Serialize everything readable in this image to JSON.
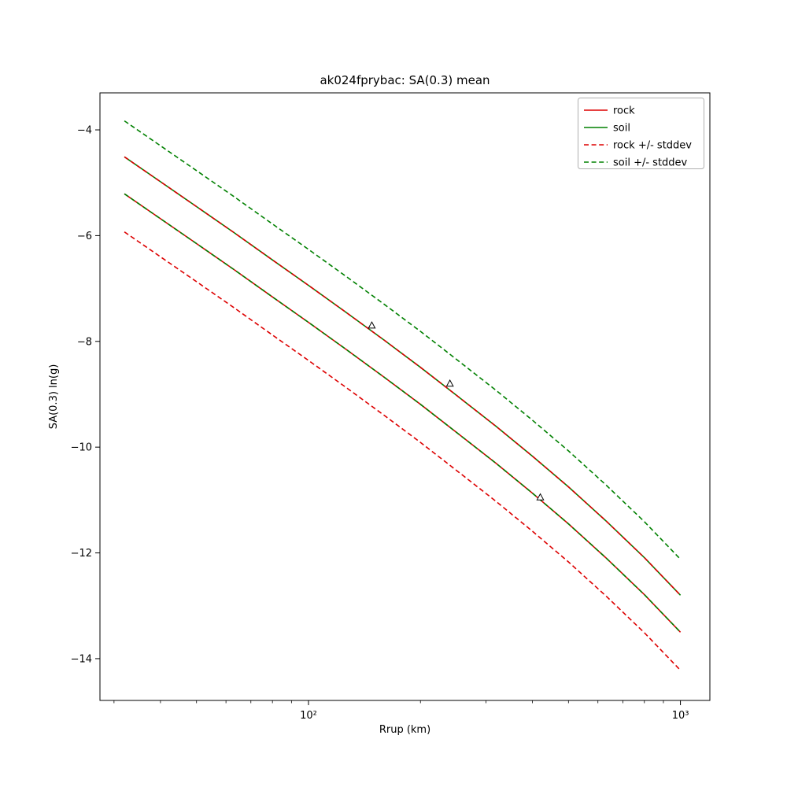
{
  "chart_data": {
    "type": "line",
    "title": "ak024fprybac: SA(0.3) mean",
    "xlabel": "Rrup (km)",
    "ylabel": "SA(0.3) ln(g)",
    "xscale": "log",
    "xlim": [
      27.5,
      1200
    ],
    "ylim": [
      -14.79,
      -3.3
    ],
    "grid": false,
    "yticks": [
      -4,
      -6,
      -8,
      -10,
      -12,
      -14
    ],
    "ytick_labels": [
      "−4",
      "−6",
      "−8",
      "−10",
      "−12",
      "−14"
    ],
    "xticks_major": [
      100,
      1000
    ],
    "xtick_labels": [
      "10²",
      "10³"
    ],
    "xticks_minor": [
      30,
      40,
      50,
      60,
      70,
      80,
      90,
      200,
      300,
      400,
      500,
      600,
      700,
      800,
      900
    ],
    "x": [
      32,
      40,
      50,
      63,
      80,
      100,
      125,
      160,
      200,
      250,
      320,
      400,
      500,
      630,
      800,
      1000
    ],
    "series": [
      {
        "name": "rock",
        "color": "#dd0000",
        "style": "solid",
        "values": [
          -5.21,
          -5.68,
          -6.15,
          -6.64,
          -7.16,
          -7.64,
          -8.13,
          -8.68,
          -9.19,
          -9.72,
          -10.31,
          -10.87,
          -11.45,
          -12.09,
          -12.79,
          -13.5
        ]
      },
      {
        "name": "soil",
        "color": "#008000",
        "style": "solid",
        "values": [
          -4.51,
          -4.98,
          -5.45,
          -5.94,
          -6.46,
          -6.94,
          -7.43,
          -7.98,
          -8.49,
          -9.02,
          -9.61,
          -10.17,
          -10.75,
          -11.39,
          -12.09,
          -12.8
        ]
      },
      {
        "name": "rock +/- stddev",
        "color": "#dd0000",
        "style": "dashed",
        "upper": [
          -4.51,
          -4.98,
          -5.45,
          -5.94,
          -6.46,
          -6.94,
          -7.43,
          -7.98,
          -8.49,
          -9.02,
          -9.61,
          -10.17,
          -10.75,
          -11.39,
          -12.09,
          -12.8
        ],
        "lower": [
          -5.93,
          -6.4,
          -6.87,
          -7.36,
          -7.88,
          -8.36,
          -8.85,
          -9.4,
          -9.91,
          -10.44,
          -11.03,
          -11.59,
          -12.17,
          -12.81,
          -13.51,
          -14.22
        ]
      },
      {
        "name": "soil +/- stddev",
        "color": "#008000",
        "style": "dashed",
        "upper": [
          -3.83,
          -4.3,
          -4.77,
          -5.26,
          -5.78,
          -6.26,
          -6.75,
          -7.3,
          -7.81,
          -8.34,
          -8.93,
          -9.49,
          -10.07,
          -10.71,
          -11.41,
          -12.12
        ],
        "lower": [
          -5.21,
          -5.68,
          -6.15,
          -6.64,
          -7.16,
          -7.64,
          -8.13,
          -8.68,
          -9.19,
          -9.72,
          -10.31,
          -10.87,
          -11.45,
          -12.09,
          -12.79,
          -13.5
        ]
      }
    ],
    "scatter": {
      "marker": "triangle-up-open",
      "edge_color": "#000000",
      "points": [
        [
          148,
          -7.7
        ],
        [
          240,
          -8.8
        ],
        [
          420,
          -10.95
        ]
      ]
    },
    "legend": {
      "position": "upper right",
      "entries": [
        "rock",
        "soil",
        "rock +/- stddev",
        "soil +/- stddev"
      ]
    }
  }
}
